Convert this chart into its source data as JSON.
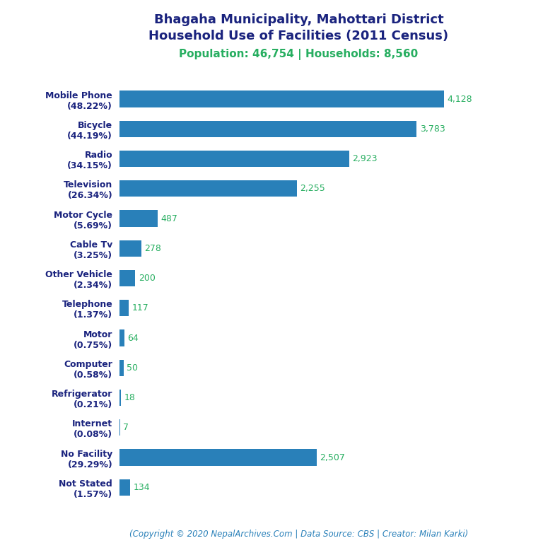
{
  "title_line1": "Bhagaha Municipality, Mahottari District",
  "title_line2": "Household Use of Facilities (2011 Census)",
  "subtitle": "Population: 46,754 | Households: 8,560",
  "footer": "(Copyright © 2020 NepalArchives.Com | Data Source: CBS | Creator: Milan Karki)",
  "categories": [
    "Mobile Phone\n(48.22%)",
    "Bicycle\n(44.19%)",
    "Radio\n(34.15%)",
    "Television\n(26.34%)",
    "Motor Cycle\n(5.69%)",
    "Cable Tv\n(3.25%)",
    "Other Vehicle\n(2.34%)",
    "Telephone\n(1.37%)",
    "Motor\n(0.75%)",
    "Computer\n(0.58%)",
    "Refrigerator\n(0.21%)",
    "Internet\n(0.08%)",
    "No Facility\n(29.29%)",
    "Not Stated\n(1.57%)"
  ],
  "values": [
    4128,
    3783,
    2923,
    2255,
    487,
    278,
    200,
    117,
    64,
    50,
    18,
    7,
    2507,
    134
  ],
  "bar_color": "#2980b9",
  "label_color": "#27ae60",
  "title_color": "#1a237e",
  "subtitle_color": "#27ae60",
  "footer_color": "#2980b9",
  "bg_color": "#ffffff",
  "bar_height": 0.55,
  "xlim": [
    0,
    4700
  ],
  "title_fontsize": 13,
  "subtitle_fontsize": 11,
  "label_fontsize": 9,
  "ytick_fontsize": 9,
  "footer_fontsize": 8.5
}
